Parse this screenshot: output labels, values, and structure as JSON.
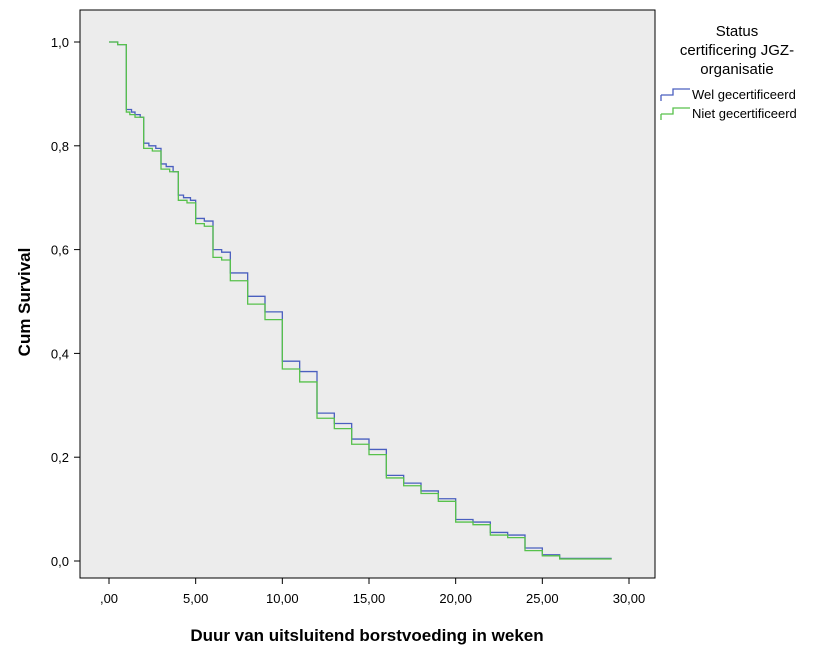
{
  "chart_data": {
    "type": "line",
    "step": true,
    "xlabel": "Duur van uitsluitend borstvoeding in weken",
    "ylabel": "Cum Survival",
    "xlim": [
      0,
      30
    ],
    "ylim": [
      0,
      1
    ],
    "x_ticks": [
      0,
      5,
      10,
      15,
      20,
      25,
      30
    ],
    "x_tick_labels": [
      ",00",
      "5,00",
      "10,00",
      "15,00",
      "20,00",
      "25,00",
      "30,00"
    ],
    "y_ticks": [
      0,
      0.2,
      0.4,
      0.6,
      0.8,
      1.0
    ],
    "y_tick_labels": [
      "0,0",
      "0,2",
      "0,4",
      "0,6",
      "0,8",
      "1,0"
    ],
    "grid": false,
    "background": "#ececec",
    "legend": {
      "title": [
        "Status",
        "certificering JGZ-",
        "organisatie"
      ],
      "position": "top-right-outside"
    },
    "series": [
      {
        "name": "Wel gecertificeerd",
        "color": "#4a5fbf",
        "points": [
          [
            0,
            1.0
          ],
          [
            0.3,
            1.0
          ],
          [
            0.5,
            0.995
          ],
          [
            0.7,
            0.995
          ],
          [
            1.0,
            0.99
          ],
          [
            1.0,
            0.87
          ],
          [
            1.2,
            0.87
          ],
          [
            1.3,
            0.865
          ],
          [
            1.5,
            0.86
          ],
          [
            1.8,
            0.855
          ],
          [
            2.0,
            0.85
          ],
          [
            2.0,
            0.805
          ],
          [
            2.3,
            0.8
          ],
          [
            2.7,
            0.795
          ],
          [
            3.0,
            0.79
          ],
          [
            3.0,
            0.765
          ],
          [
            3.3,
            0.76
          ],
          [
            3.7,
            0.75
          ],
          [
            4.0,
            0.745
          ],
          [
            4.0,
            0.705
          ],
          [
            4.3,
            0.7
          ],
          [
            4.7,
            0.695
          ],
          [
            5.0,
            0.69
          ],
          [
            5.0,
            0.66
          ],
          [
            5.5,
            0.655
          ],
          [
            6.0,
            0.645
          ],
          [
            6.0,
            0.6
          ],
          [
            6.5,
            0.595
          ],
          [
            7.0,
            0.59
          ],
          [
            7.0,
            0.555
          ],
          [
            8.0,
            0.55
          ],
          [
            8.0,
            0.51
          ],
          [
            9.0,
            0.505
          ],
          [
            9.0,
            0.48
          ],
          [
            10.0,
            0.475
          ],
          [
            10.0,
            0.385
          ],
          [
            11.0,
            0.38
          ],
          [
            11.0,
            0.365
          ],
          [
            12.0,
            0.36
          ],
          [
            12.0,
            0.285
          ],
          [
            13.0,
            0.28
          ],
          [
            13.0,
            0.265
          ],
          [
            14.0,
            0.26
          ],
          [
            14.0,
            0.235
          ],
          [
            15.0,
            0.23
          ],
          [
            15.0,
            0.215
          ],
          [
            16.0,
            0.21
          ],
          [
            16.0,
            0.165
          ],
          [
            17.0,
            0.16
          ],
          [
            17.0,
            0.15
          ],
          [
            18.0,
            0.145
          ],
          [
            18.0,
            0.135
          ],
          [
            19.0,
            0.13
          ],
          [
            19.0,
            0.12
          ],
          [
            20.0,
            0.115
          ],
          [
            20.0,
            0.08
          ],
          [
            21.0,
            0.075
          ],
          [
            22.0,
            0.07
          ],
          [
            22.0,
            0.055
          ],
          [
            23.0,
            0.05
          ],
          [
            24.0,
            0.045
          ],
          [
            24.0,
            0.025
          ],
          [
            25.0,
            0.02
          ],
          [
            25.0,
            0.012
          ],
          [
            26.0,
            0.01
          ],
          [
            26.0,
            0.005
          ],
          [
            29.0,
            0.005
          ]
        ]
      },
      {
        "name": "Niet gecertificeerd",
        "color": "#57c14b",
        "points": [
          [
            0,
            1.0
          ],
          [
            0.3,
            1.0
          ],
          [
            0.5,
            0.995
          ],
          [
            0.7,
            0.995
          ],
          [
            1.0,
            0.985
          ],
          [
            1.0,
            0.865
          ],
          [
            1.2,
            0.86
          ],
          [
            1.5,
            0.855
          ],
          [
            2.0,
            0.845
          ],
          [
            2.0,
            0.795
          ],
          [
            2.5,
            0.79
          ],
          [
            3.0,
            0.785
          ],
          [
            3.0,
            0.755
          ],
          [
            3.5,
            0.75
          ],
          [
            4.0,
            0.74
          ],
          [
            4.0,
            0.695
          ],
          [
            4.5,
            0.69
          ],
          [
            5.0,
            0.685
          ],
          [
            5.0,
            0.65
          ],
          [
            5.5,
            0.645
          ],
          [
            6.0,
            0.635
          ],
          [
            6.0,
            0.585
          ],
          [
            6.5,
            0.58
          ],
          [
            7.0,
            0.575
          ],
          [
            7.0,
            0.54
          ],
          [
            8.0,
            0.535
          ],
          [
            8.0,
            0.495
          ],
          [
            9.0,
            0.49
          ],
          [
            9.0,
            0.465
          ],
          [
            10.0,
            0.46
          ],
          [
            10.0,
            0.37
          ],
          [
            11.0,
            0.365
          ],
          [
            11.0,
            0.345
          ],
          [
            12.0,
            0.34
          ],
          [
            12.0,
            0.275
          ],
          [
            13.0,
            0.27
          ],
          [
            13.0,
            0.255
          ],
          [
            14.0,
            0.25
          ],
          [
            14.0,
            0.225
          ],
          [
            15.0,
            0.22
          ],
          [
            15.0,
            0.205
          ],
          [
            16.0,
            0.2
          ],
          [
            16.0,
            0.16
          ],
          [
            17.0,
            0.155
          ],
          [
            17.0,
            0.145
          ],
          [
            18.0,
            0.14
          ],
          [
            18.0,
            0.13
          ],
          [
            19.0,
            0.125
          ],
          [
            19.0,
            0.115
          ],
          [
            20.0,
            0.11
          ],
          [
            20.0,
            0.075
          ],
          [
            21.0,
            0.07
          ],
          [
            22.0,
            0.065
          ],
          [
            22.0,
            0.05
          ],
          [
            23.0,
            0.045
          ],
          [
            24.0,
            0.04
          ],
          [
            24.0,
            0.02
          ],
          [
            25.0,
            0.018
          ],
          [
            25.0,
            0.01
          ],
          [
            26.0,
            0.008
          ],
          [
            26.0,
            0.004
          ],
          [
            29.0,
            0.004
          ]
        ]
      }
    ]
  }
}
